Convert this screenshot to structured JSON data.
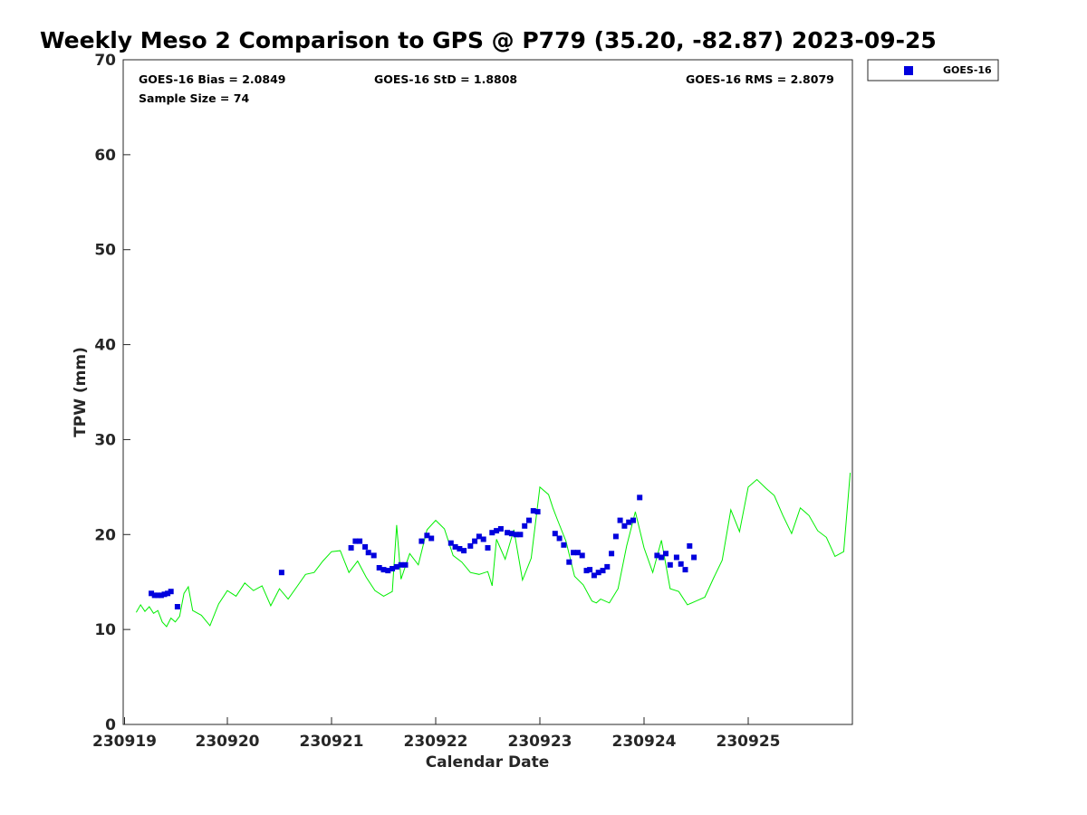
{
  "chart_data": {
    "type": "scatter",
    "title": "Weekly Meso 2 Comparison to GPS @ P779 (35.20, -82.87) 2023-09-25",
    "xlabel": "Calendar Date",
    "ylabel": "TPW (mm)",
    "x_tick_labels": [
      "230919",
      "230920",
      "230921",
      "230922",
      "230923",
      "230924",
      "230925"
    ],
    "xlim": [
      "2023-09-19T00:00",
      "2023-09-25T23:59"
    ],
    "ylim": [
      0,
      70
    ],
    "y_ticks": [
      0,
      10,
      20,
      30,
      40,
      50,
      60,
      70
    ],
    "grid": false,
    "legend_position": "top-right",
    "stats": {
      "bias": "GOES-16 Bias = 2.0849",
      "std": "GOES-16 StD = 1.8808",
      "rms": "GOES-16 RMS = 2.8079",
      "sample": "Sample Size = 74"
    },
    "colors": {
      "goes16": "#0000dd",
      "gps": "#00ee00"
    },
    "series": [
      {
        "name": "GOES-16",
        "style": "square-markers",
        "x": [
          "2023-09-19T06:30",
          "2023-09-19T07:15",
          "2023-09-19T08:00",
          "2023-09-19T08:45",
          "2023-09-19T09:30",
          "2023-09-19T10:15",
          "2023-09-19T11:00",
          "2023-09-19T12:30",
          "2023-09-20T12:30",
          "2023-09-21T04:30",
          "2023-09-21T05:30",
          "2023-09-21T06:30",
          "2023-09-21T07:45",
          "2023-09-21T08:30",
          "2023-09-21T09:45",
          "2023-09-21T11:00",
          "2023-09-21T12:00",
          "2023-09-21T13:00",
          "2023-09-21T14:00",
          "2023-09-21T15:00",
          "2023-09-21T16:00",
          "2023-09-21T17:00",
          "2023-09-21T20:45",
          "2023-09-21T22:00",
          "2023-09-21T23:00",
          "2023-09-22T03:30",
          "2023-09-22T04:30",
          "2023-09-22T05:30",
          "2023-09-22T06:30",
          "2023-09-22T08:00",
          "2023-09-22T09:00",
          "2023-09-22T10:00",
          "2023-09-22T11:00",
          "2023-09-22T12:00",
          "2023-09-22T13:00",
          "2023-09-22T14:00",
          "2023-09-22T15:00",
          "2023-09-22T16:30",
          "2023-09-22T17:30",
          "2023-09-22T18:30",
          "2023-09-22T19:30",
          "2023-09-22T20:30",
          "2023-09-22T21:30",
          "2023-09-22T22:30",
          "2023-09-22T23:30",
          "2023-09-23T03:30",
          "2023-09-23T04:30",
          "2023-09-23T05:30",
          "2023-09-23T06:45",
          "2023-09-23T07:45",
          "2023-09-23T08:45",
          "2023-09-23T09:45",
          "2023-09-23T10:45",
          "2023-09-23T11:30",
          "2023-09-23T12:30",
          "2023-09-23T13:30",
          "2023-09-23T14:30",
          "2023-09-23T15:30",
          "2023-09-23T16:30",
          "2023-09-23T17:30",
          "2023-09-23T18:30",
          "2023-09-23T19:30",
          "2023-09-23T20:30",
          "2023-09-23T21:30",
          "2023-09-23T23:00",
          "2023-09-24T03:00",
          "2023-09-24T04:00",
          "2023-09-24T05:00",
          "2023-09-24T06:00",
          "2023-09-24T07:30",
          "2023-09-24T08:30",
          "2023-09-24T09:30",
          "2023-09-24T10:30",
          "2023-09-24T11:30"
        ],
        "y": [
          13.8,
          13.6,
          13.6,
          13.6,
          13.7,
          13.8,
          14.0,
          12.4,
          16.0,
          18.6,
          19.3,
          19.3,
          18.7,
          18.1,
          17.8,
          16.5,
          16.3,
          16.2,
          16.4,
          16.6,
          16.8,
          16.8,
          19.3,
          19.9,
          19.6,
          19.1,
          18.7,
          18.5,
          18.3,
          18.8,
          19.3,
          19.8,
          19.5,
          18.6,
          20.2,
          20.4,
          20.6,
          20.2,
          20.1,
          20.0,
          20.0,
          20.9,
          21.5,
          22.5,
          22.4,
          20.1,
          19.6,
          18.9,
          17.1,
          18.1,
          18.1,
          17.8,
          16.2,
          16.3,
          15.7,
          16.0,
          16.2,
          16.6,
          18.0,
          19.8,
          21.5,
          20.9,
          21.3,
          21.5,
          23.9,
          17.8,
          17.6,
          18.0,
          16.8,
          17.6,
          16.9,
          16.3,
          18.8,
          17.6
        ]
      },
      {
        "name": "",
        "style": "line",
        "x": [
          "2023-09-19T03:00",
          "2023-09-19T04:00",
          "2023-09-19T05:00",
          "2023-09-19T06:00",
          "2023-09-19T07:00",
          "2023-09-19T08:00",
          "2023-09-19T09:00",
          "2023-09-19T10:00",
          "2023-09-19T11:00",
          "2023-09-19T12:00",
          "2023-09-19T13:00",
          "2023-09-19T14:00",
          "2023-09-19T15:00",
          "2023-09-19T16:00",
          "2023-09-19T18:00",
          "2023-09-19T20:00",
          "2023-09-19T22:00",
          "2023-09-20T00:00",
          "2023-09-20T02:00",
          "2023-09-20T04:00",
          "2023-09-20T06:00",
          "2023-09-20T08:00",
          "2023-09-20T10:00",
          "2023-09-20T12:00",
          "2023-09-20T14:00",
          "2023-09-20T16:00",
          "2023-09-20T18:00",
          "2023-09-20T20:00",
          "2023-09-20T22:00",
          "2023-09-21T00:00",
          "2023-09-21T02:00",
          "2023-09-21T04:00",
          "2023-09-21T06:00",
          "2023-09-21T08:00",
          "2023-09-21T10:00",
          "2023-09-21T12:00",
          "2023-09-21T14:00",
          "2023-09-21T15:00",
          "2023-09-21T16:00",
          "2023-09-21T18:00",
          "2023-09-21T20:00",
          "2023-09-21T22:00",
          "2023-09-22T00:00",
          "2023-09-22T02:00",
          "2023-09-22T04:00",
          "2023-09-22T06:00",
          "2023-09-22T08:00",
          "2023-09-22T10:00",
          "2023-09-22T12:00",
          "2023-09-22T13:00",
          "2023-09-22T14:00",
          "2023-09-22T16:00",
          "2023-09-22T18:00",
          "2023-09-22T20:00",
          "2023-09-22T22:00",
          "2023-09-23T00:00",
          "2023-09-23T02:00",
          "2023-09-23T03:00",
          "2023-09-23T04:00",
          "2023-09-23T06:00",
          "2023-09-23T08:00",
          "2023-09-23T10:00",
          "2023-09-23T12:00",
          "2023-09-23T13:00",
          "2023-09-23T14:00",
          "2023-09-23T16:00",
          "2023-09-23T18:00",
          "2023-09-23T20:00",
          "2023-09-23T22:00",
          "2023-09-24T00:00",
          "2023-09-24T02:00",
          "2023-09-24T04:00",
          "2023-09-24T06:00",
          "2023-09-24T08:00",
          "2023-09-24T10:00",
          "2023-09-24T12:00",
          "2023-09-24T14:00",
          "2023-09-24T16:00",
          "2023-09-24T18:00",
          "2023-09-24T20:00",
          "2023-09-24T22:00",
          "2023-09-25T00:00",
          "2023-09-25T02:00",
          "2023-09-25T04:00",
          "2023-09-25T06:00",
          "2023-09-25T08:00",
          "2023-09-25T10:00",
          "2023-09-25T12:00",
          "2023-09-25T14:00",
          "2023-09-25T16:00",
          "2023-09-25T18:00",
          "2023-09-25T20:00",
          "2023-09-25T22:00",
          "2023-09-25T23:30"
        ],
        "y": [
          11.8,
          12.6,
          11.9,
          12.4,
          11.7,
          12.0,
          10.8,
          10.3,
          11.2,
          10.8,
          11.4,
          13.8,
          14.5,
          12.0,
          11.5,
          10.4,
          12.7,
          14.1,
          13.5,
          14.9,
          14.1,
          14.6,
          12.5,
          14.3,
          13.2,
          14.5,
          15.8,
          16.0,
          17.2,
          18.2,
          18.3,
          16.0,
          17.2,
          15.5,
          14.1,
          13.5,
          14.0,
          21.0,
          15.3,
          18.0,
          16.8,
          20.5,
          21.5,
          20.6,
          17.8,
          17.1,
          16.0,
          15.8,
          16.1,
          14.6,
          19.5,
          17.4,
          20.5,
          15.2,
          17.5,
          25.0,
          24.2,
          22.8,
          21.6,
          19.3,
          15.6,
          14.7,
          13.0,
          12.8,
          13.2,
          12.8,
          14.3,
          18.8,
          22.4,
          18.6,
          16.0,
          19.4,
          14.3,
          14.0,
          12.6,
          13.0,
          13.4,
          15.4,
          17.3,
          22.6,
          20.3,
          25.0,
          25.8,
          24.9,
          24.1,
          22.0,
          20.1,
          22.8,
          22.0,
          20.4,
          19.7,
          17.7,
          18.2,
          26.5
        ]
      }
    ]
  }
}
